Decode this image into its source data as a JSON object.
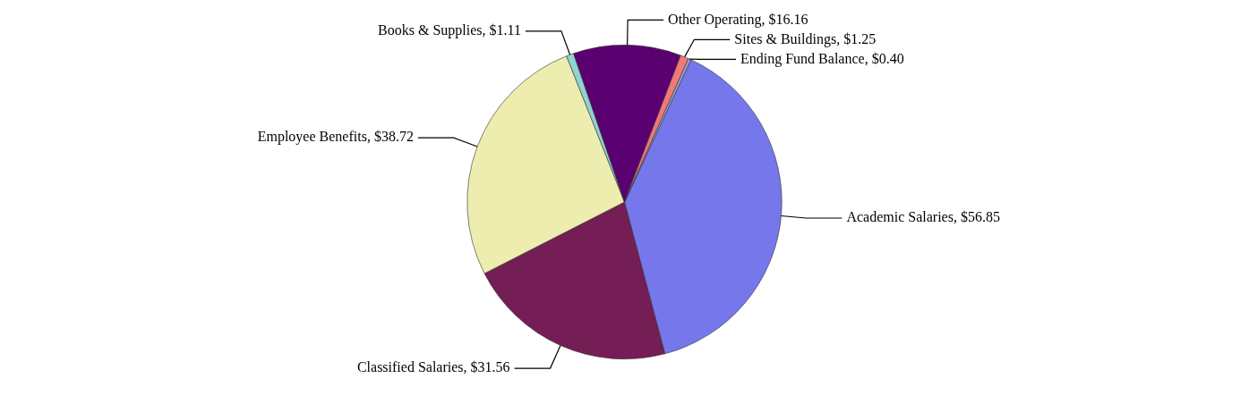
{
  "chart_data": {
    "type": "pie",
    "categories": [
      "Academic Salaries",
      "Classified Salaries",
      "Employee Benefits",
      "Books & Supplies",
      "Other Operating",
      "Sites & Buildings",
      "Ending Fund Balance"
    ],
    "values": [
      56.85,
      31.56,
      38.72,
      1.11,
      16.16,
      1.25,
      0.4
    ],
    "value_labels": [
      "$56.85",
      "$31.56",
      "$38.72",
      "$1.11",
      "$16.16",
      "$1.25",
      "$0.40"
    ],
    "colors": [
      "#7577ea",
      "#751d55",
      "#ededb0",
      "#8fd3d3",
      "#5a0070",
      "#f07878",
      "#9aa0d0"
    ],
    "legend": false
  }
}
